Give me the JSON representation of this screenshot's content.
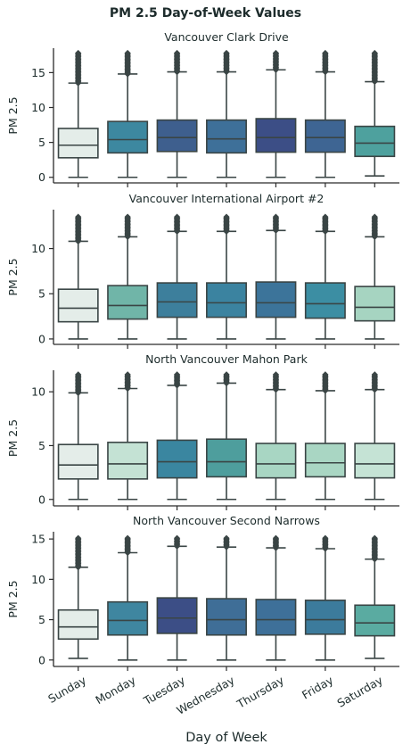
{
  "title": "PM 2.5 Day-of-Week Values",
  "chart_data": {
    "type": "box",
    "xlabel": "Day of Week",
    "ylabel": "PM 2.5",
    "categories": [
      "Sunday",
      "Monday",
      "Tuesday",
      "Wednesday",
      "Thursday",
      "Friday",
      "Saturday"
    ],
    "panels": [
      {
        "title": "Vancouver Clark Drive",
        "ylim": [
          -0.8,
          18.5
        ],
        "yticks": [
          0,
          5,
          10,
          15
        ],
        "boxes": [
          {
            "whisker_low": 0.0,
            "q1": 2.8,
            "median": 4.6,
            "q3": 7.0,
            "whisker_high": 13.5,
            "outlier_max": 17.8,
            "color": "#e4ede9"
          },
          {
            "whisker_low": 0.0,
            "q1": 3.5,
            "median": 5.4,
            "q3": 8.0,
            "whisker_high": 14.8,
            "outlier_max": 17.8,
            "color": "#3d88a0"
          },
          {
            "whisker_low": 0.0,
            "q1": 3.7,
            "median": 5.7,
            "q3": 8.2,
            "whisker_high": 15.1,
            "outlier_max": 17.8,
            "color": "#3e5f8e"
          },
          {
            "whisker_low": 0.0,
            "q1": 3.5,
            "median": 5.5,
            "q3": 8.2,
            "whisker_high": 15.1,
            "outlier_max": 17.8,
            "color": "#3e7099"
          },
          {
            "whisker_low": 0.0,
            "q1": 3.6,
            "median": 5.7,
            "q3": 8.4,
            "whisker_high": 15.4,
            "outlier_max": 17.8,
            "color": "#3c4e86"
          },
          {
            "whisker_low": 0.0,
            "q1": 3.6,
            "median": 5.7,
            "q3": 8.2,
            "whisker_high": 15.1,
            "outlier_max": 17.8,
            "color": "#3e6593"
          },
          {
            "whisker_low": 0.2,
            "q1": 3.0,
            "median": 4.9,
            "q3": 7.3,
            "whisker_high": 13.7,
            "outlier_max": 17.8,
            "color": "#4ea19e"
          }
        ]
      },
      {
        "title": "Vancouver International Airport #2",
        "ylim": [
          -0.6,
          14.3
        ],
        "yticks": [
          0,
          5,
          10
        ],
        "boxes": [
          {
            "whisker_low": 0.0,
            "q1": 1.9,
            "median": 3.4,
            "q3": 5.5,
            "whisker_high": 10.8,
            "outlier_max": 13.5,
            "color": "#e4ede9"
          },
          {
            "whisker_low": 0.0,
            "q1": 2.2,
            "median": 3.7,
            "q3": 5.9,
            "whisker_high": 11.3,
            "outlier_max": 13.5,
            "color": "#70b5a8"
          },
          {
            "whisker_low": 0.0,
            "q1": 2.4,
            "median": 4.1,
            "q3": 6.2,
            "whisker_high": 11.9,
            "outlier_max": 13.5,
            "color": "#3d7f9c"
          },
          {
            "whisker_low": 0.0,
            "q1": 2.4,
            "median": 4.0,
            "q3": 6.2,
            "whisker_high": 11.9,
            "outlier_max": 13.5,
            "color": "#3b83a0"
          },
          {
            "whisker_low": 0.0,
            "q1": 2.4,
            "median": 4.0,
            "q3": 6.3,
            "whisker_high": 12.0,
            "outlier_max": 13.5,
            "color": "#3c749a"
          },
          {
            "whisker_low": 0.0,
            "q1": 2.3,
            "median": 3.9,
            "q3": 6.2,
            "whisker_high": 11.9,
            "outlier_max": 13.5,
            "color": "#3c8ea3"
          },
          {
            "whisker_low": 0.0,
            "q1": 2.0,
            "median": 3.5,
            "q3": 5.8,
            "whisker_high": 11.3,
            "outlier_max": 13.5,
            "color": "#a6d4c1"
          }
        ]
      },
      {
        "title": "North Vancouver Mahon Park",
        "ylim": [
          -0.6,
          12.0
        ],
        "yticks": [
          0,
          5,
          10
        ],
        "boxes": [
          {
            "whisker_low": 0.0,
            "q1": 1.9,
            "median": 3.2,
            "q3": 5.1,
            "whisker_high": 9.9,
            "outlier_max": 11.6,
            "color": "#e4ede9"
          },
          {
            "whisker_low": 0.0,
            "q1": 1.9,
            "median": 3.3,
            "q3": 5.3,
            "whisker_high": 10.3,
            "outlier_max": 11.6,
            "color": "#c4e2d4"
          },
          {
            "whisker_low": 0.0,
            "q1": 2.0,
            "median": 3.5,
            "q3": 5.5,
            "whisker_high": 10.6,
            "outlier_max": 11.6,
            "color": "#3a86a0"
          },
          {
            "whisker_low": 0.0,
            "q1": 2.1,
            "median": 3.5,
            "q3": 5.6,
            "whisker_high": 10.8,
            "outlier_max": 11.6,
            "color": "#4e9e9d"
          },
          {
            "whisker_low": 0.0,
            "q1": 2.0,
            "median": 3.3,
            "q3": 5.2,
            "whisker_high": 10.2,
            "outlier_max": 11.6,
            "color": "#a8d6c3"
          },
          {
            "whisker_low": 0.0,
            "q1": 2.1,
            "median": 3.4,
            "q3": 5.2,
            "whisker_high": 10.1,
            "outlier_max": 11.6,
            "color": "#a9d6c3"
          },
          {
            "whisker_low": 0.0,
            "q1": 2.0,
            "median": 3.3,
            "q3": 5.2,
            "whisker_high": 10.2,
            "outlier_max": 11.6,
            "color": "#c5e3d5"
          }
        ]
      },
      {
        "title": "North Vancouver Second Narrows",
        "ylim": [
          -0.8,
          15.9
        ],
        "yticks": [
          0,
          5,
          10,
          15
        ],
        "boxes": [
          {
            "whisker_low": 0.2,
            "q1": 2.6,
            "median": 4.1,
            "q3": 6.2,
            "whisker_high": 11.5,
            "outlier_max": 15.1,
            "color": "#e4ede9"
          },
          {
            "whisker_low": 0.0,
            "q1": 3.1,
            "median": 4.9,
            "q3": 7.2,
            "whisker_high": 13.3,
            "outlier_max": 15.1,
            "color": "#3f86a0"
          },
          {
            "whisker_low": 0.0,
            "q1": 3.3,
            "median": 5.2,
            "q3": 7.7,
            "whisker_high": 14.1,
            "outlier_max": 15.1,
            "color": "#3c4e86"
          },
          {
            "whisker_low": 0.0,
            "q1": 3.1,
            "median": 5.0,
            "q3": 7.6,
            "whisker_high": 14.0,
            "outlier_max": 15.1,
            "color": "#3f6e97"
          },
          {
            "whisker_low": 0.0,
            "q1": 3.1,
            "median": 5.0,
            "q3": 7.5,
            "whisker_high": 13.9,
            "outlier_max": 15.1,
            "color": "#3e7099"
          },
          {
            "whisker_low": 0.0,
            "q1": 3.2,
            "median": 5.0,
            "q3": 7.4,
            "whisker_high": 13.8,
            "outlier_max": 15.1,
            "color": "#3c7b9c"
          },
          {
            "whisker_low": 0.2,
            "q1": 3.0,
            "median": 4.6,
            "q3": 6.8,
            "whisker_high": 12.5,
            "outlier_max": 15.1,
            "color": "#5aaba1"
          }
        ]
      }
    ]
  }
}
